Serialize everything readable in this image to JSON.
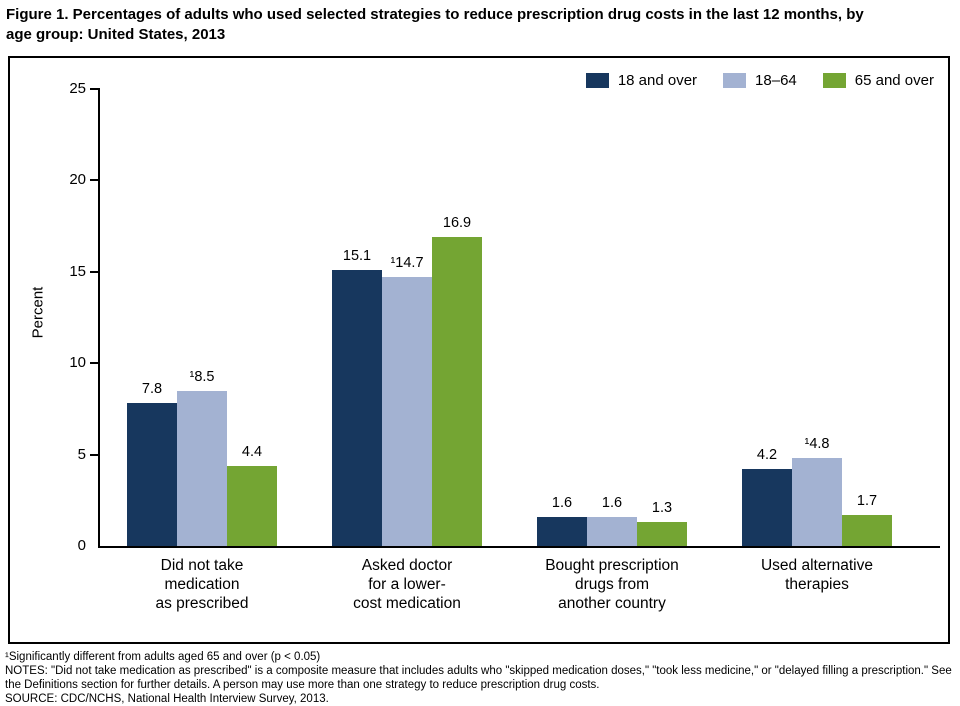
{
  "figure_title": "Figure 1. Percentages of adults who used selected strategies to reduce prescription drug costs in the last 12 months, by\nage group: United States, 2013",
  "chart_data": {
    "type": "bar",
    "title": "Percentages of adults who used selected strategies to reduce prescription drug costs in the last 12 months, by age group: United States, 2013",
    "xlabel": "",
    "ylabel": "Percent",
    "ylim": [
      0,
      25
    ],
    "yticks": [
      0,
      5,
      10,
      15,
      20,
      25
    ],
    "grid": false,
    "legend_position": "top-right",
    "categories": [
      "Did not take\nmedication\nas prescribed",
      "Asked doctor\nfor a lower-\ncost medication",
      "Bought prescription\ndrugs from\nanother country",
      "Used alternative\ntherapies"
    ],
    "series": [
      {
        "name": "18 and over",
        "color": "#17375e",
        "values": [
          7.8,
          15.1,
          1.6,
          4.2
        ],
        "labels": [
          "7.8",
          "15.1",
          "1.6",
          "4.2"
        ]
      },
      {
        "name": "18–64",
        "color": "#a3b2d2",
        "values": [
          8.5,
          14.7,
          1.6,
          4.8
        ],
        "labels": [
          "¹8.5",
          "¹14.7",
          "1.6",
          "¹4.8"
        ]
      },
      {
        "name": "65 and over",
        "color": "#74a533",
        "values": [
          4.4,
          16.9,
          1.3,
          1.7
        ],
        "labels": [
          "4.4",
          "16.9",
          "1.3",
          "1.7"
        ]
      }
    ]
  },
  "footnotes": [
    "¹Significantly different from adults aged 65 and over (p < 0.05)",
    "NOTES: \"Did not take medication as prescribed\" is a composite measure that includes adults who \"skipped medication doses,\" \"took less medicine,\" or \"delayed filling a prescription.\" See the Definitions section for further details. A person may use more than one strategy to reduce prescription drug costs.",
    "SOURCE: CDC/NCHS, National Health Interview Survey, 2013."
  ]
}
